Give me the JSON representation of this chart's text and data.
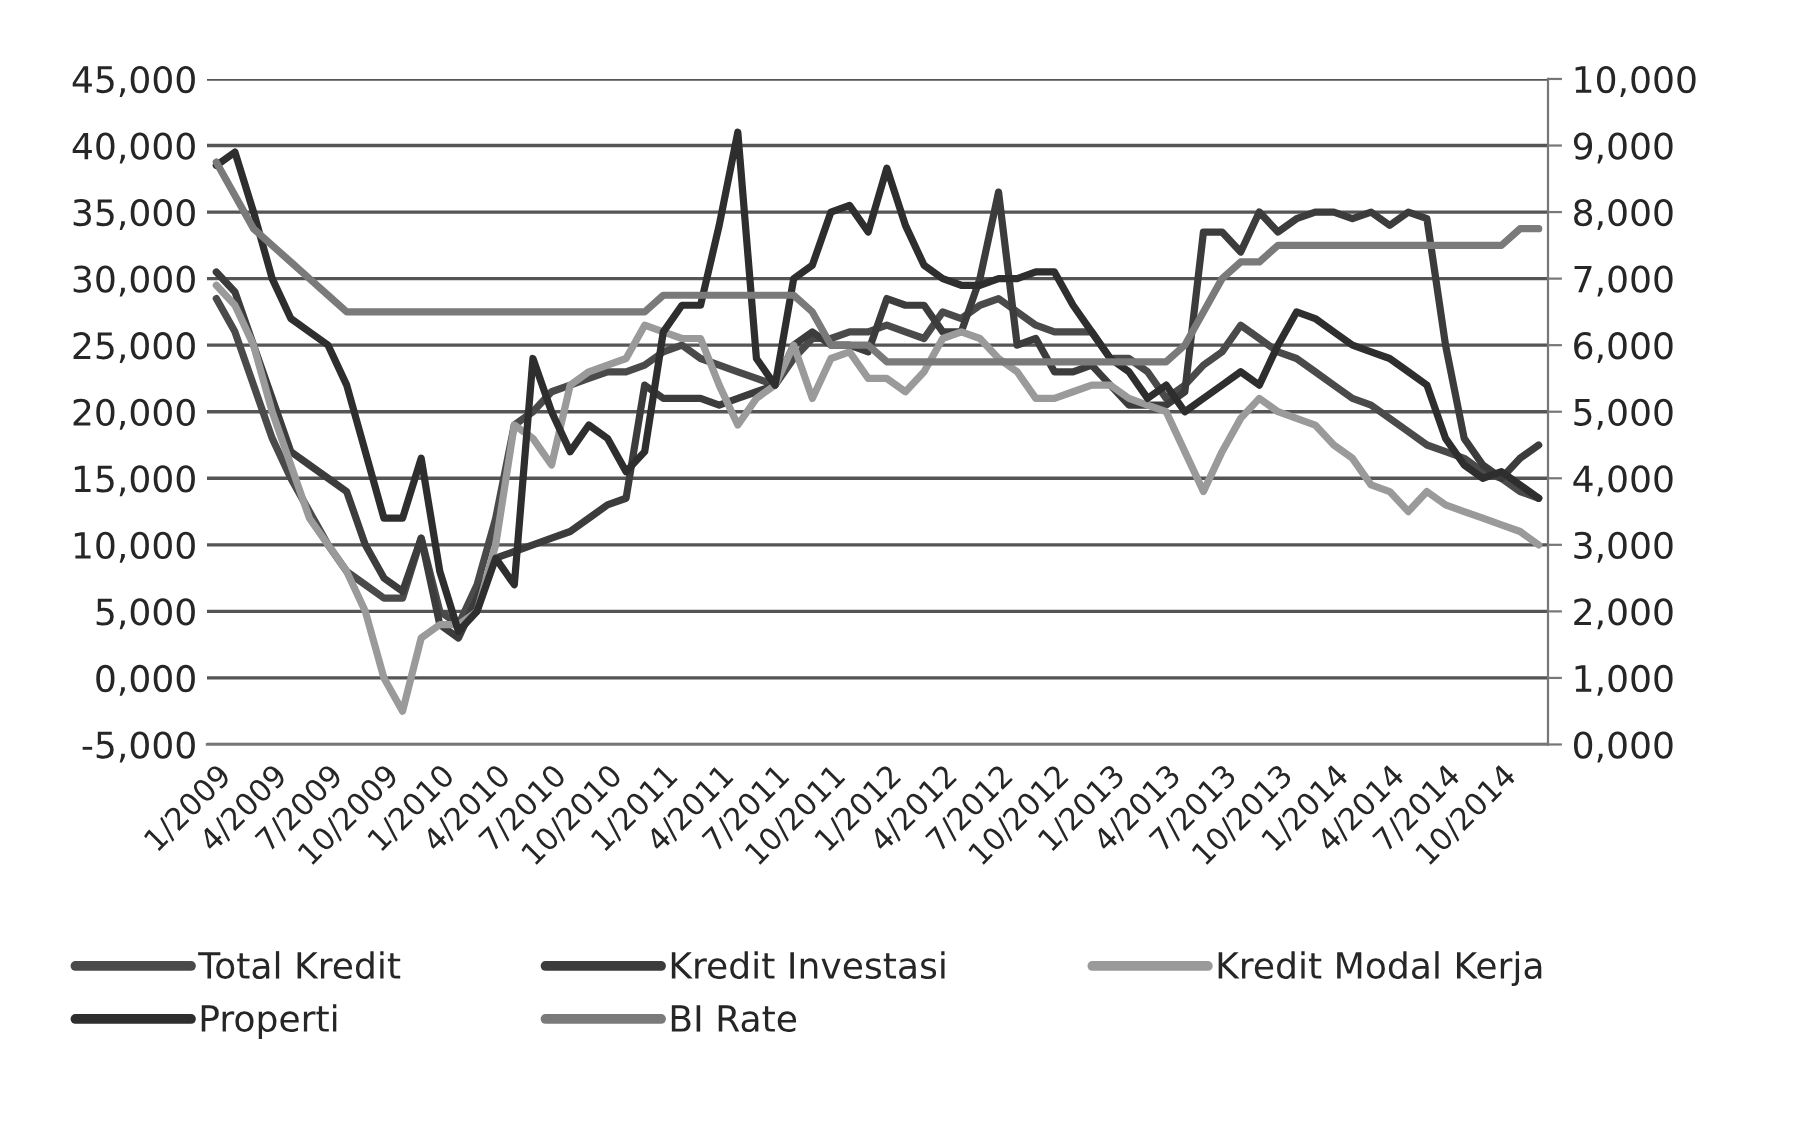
{
  "chart_data": {
    "type": "line",
    "categories": [
      "1/2009",
      null,
      null,
      "4/2009",
      null,
      null,
      "7/2009",
      null,
      null,
      "10/2009",
      null,
      null,
      "1/2010",
      null,
      null,
      "4/2010",
      null,
      null,
      "7/2010",
      null,
      null,
      "10/2010",
      null,
      null,
      "1/2011",
      null,
      null,
      "4/2011",
      null,
      null,
      "7/2011",
      null,
      null,
      "10/2011",
      null,
      null,
      "1/2012",
      null,
      null,
      "4/2012",
      null,
      null,
      "7/2012",
      null,
      null,
      "10/2012",
      null,
      null,
      "1/2013",
      null,
      null,
      "4/2013",
      null,
      null,
      "7/2013",
      null,
      null,
      "10/2013",
      null,
      null,
      "1/2014",
      null,
      null,
      "4/2014",
      null,
      null,
      "7/2014",
      null,
      null,
      "10/2014",
      null,
      null
    ],
    "series": [
      {
        "name": "Total Kredit",
        "color": "#4a4a4a",
        "values": [
          28.5,
          26,
          22,
          18,
          15,
          12.5,
          10,
          8,
          7,
          6,
          6,
          10.5,
          5,
          4,
          7,
          12,
          19,
          20,
          21.5,
          22,
          22.5,
          23,
          23,
          23.5,
          24.5,
          25,
          24,
          23.5,
          23,
          22.5,
          22,
          24,
          25.5,
          25.5,
          26,
          26,
          26.5,
          26,
          25.5,
          27.5,
          27,
          28,
          28.5,
          27.5,
          26.5,
          26,
          26,
          26,
          24,
          24,
          23,
          21,
          22,
          23.5,
          24.5,
          26.5,
          25.5,
          24.5,
          24,
          23,
          22,
          21,
          20.5,
          19.5,
          18.5,
          17.5,
          17,
          16.5,
          15.5,
          15,
          14,
          13.5
        ]
      },
      {
        "name": "Kredit Investasi",
        "color": "#3c3c3c",
        "values": [
          30.5,
          29,
          25,
          21,
          17,
          16,
          15,
          14,
          10,
          7.5,
          6.5,
          10.5,
          4,
          3,
          6,
          9,
          9.5,
          10,
          10.5,
          11,
          12,
          13,
          13.5,
          22,
          21,
          21,
          21,
          20.5,
          21,
          21.5,
          22,
          25,
          26,
          25,
          25,
          24.5,
          28.5,
          28,
          28,
          26,
          26,
          30,
          36.5,
          25,
          25.5,
          23,
          23,
          23.5,
          22,
          20.5,
          20.5,
          20.5,
          21.5,
          33.5,
          33.5,
          32,
          35,
          33.5,
          34.5,
          35,
          35,
          34.5,
          35,
          34,
          35,
          34.5,
          25,
          18,
          16,
          15,
          16.5,
          17.5
        ]
      },
      {
        "name": "Kredit Modal Kerja",
        "color": "#9a9a9a",
        "values": [
          29.5,
          28,
          25,
          20,
          16,
          12,
          10,
          8,
          5,
          0,
          -2.5,
          3,
          4,
          4,
          5,
          10,
          19,
          18,
          16,
          22,
          23,
          23.5,
          24,
          26.5,
          26,
          25.5,
          25.5,
          22,
          19,
          21,
          22,
          25,
          21,
          24,
          24.5,
          22.5,
          22.5,
          21.5,
          23,
          25.5,
          26,
          25.5,
          24,
          23,
          21,
          21,
          21.5,
          22,
          22,
          21,
          20.5,
          20,
          17,
          14,
          17,
          19.5,
          21,
          20,
          19.5,
          19,
          17.5,
          16.5,
          14.5,
          14,
          12.5,
          14,
          13,
          12.5,
          12,
          11.5,
          11,
          10
        ]
      },
      {
        "name": "Properti",
        "color": "#2e2e2e",
        "values": [
          38.5,
          39.5,
          35,
          30,
          27,
          26,
          25,
          22,
          17,
          12,
          12,
          16.5,
          8,
          3.5,
          5,
          9,
          7,
          24,
          20,
          17,
          19,
          18,
          15.5,
          17,
          26,
          28,
          28,
          34,
          41,
          24,
          22,
          30,
          31,
          35,
          35.5,
          33.5,
          38.3,
          34,
          31,
          30,
          29.5,
          29.5,
          30,
          30,
          30.5,
          30.5,
          28,
          26,
          24,
          23,
          21,
          22,
          20,
          21,
          22,
          23,
          22,
          25,
          27.5,
          27,
          26,
          25,
          24.5,
          24,
          23,
          22,
          18,
          16,
          15,
          15.5,
          14.5,
          13.5
        ]
      },
      {
        "name": "BI Rate",
        "color": "#7a7a7a",
        "axis": "y2",
        "values": [
          8.75,
          8.25,
          7.75,
          7.5,
          7.25,
          7,
          6.75,
          6.5,
          6.5,
          6.5,
          6.5,
          6.5,
          6.5,
          6.5,
          6.5,
          6.5,
          6.5,
          6.5,
          6.5,
          6.5,
          6.5,
          6.5,
          6.5,
          6.5,
          6.75,
          6.75,
          6.75,
          6.75,
          6.75,
          6.75,
          6.75,
          6.75,
          6.5,
          6,
          6,
          6,
          5.75,
          5.75,
          5.75,
          5.75,
          5.75,
          5.75,
          5.75,
          5.75,
          5.75,
          5.75,
          5.75,
          5.75,
          5.75,
          5.75,
          5.75,
          5.75,
          6,
          6.5,
          7,
          7.25,
          7.25,
          7.5,
          7.5,
          7.5,
          7.5,
          7.5,
          7.5,
          7.5,
          7.5,
          7.5,
          7.5,
          7.5,
          7.5,
          7.5,
          7.75,
          7.75
        ]
      }
    ],
    "ylim": [
      -5,
      45
    ],
    "yticks": [
      {
        "value": -5,
        "label": "-5,000"
      },
      {
        "value": 0,
        "label": "0,000"
      },
      {
        "value": 5,
        "label": "5,000"
      },
      {
        "value": 10,
        "label": "10,000"
      },
      {
        "value": 15,
        "label": "15,000"
      },
      {
        "value": 20,
        "label": "20,000"
      },
      {
        "value": 25,
        "label": "25,000"
      },
      {
        "value": 30,
        "label": "30,000"
      },
      {
        "value": 35,
        "label": "35,000"
      },
      {
        "value": 40,
        "label": "40,000"
      },
      {
        "value": 45,
        "label": "45,000"
      }
    ],
    "y2lim": [
      0,
      10
    ],
    "y2ticks": [
      {
        "value": 0,
        "label": "0,000"
      },
      {
        "value": 1,
        "label": "1,000"
      },
      {
        "value": 2,
        "label": "2,000"
      },
      {
        "value": 3,
        "label": "3,000"
      },
      {
        "value": 4,
        "label": "4,000"
      },
      {
        "value": 5,
        "label": "5,000"
      },
      {
        "value": 6,
        "label": "6,000"
      },
      {
        "value": 7,
        "label": "7,000"
      },
      {
        "value": 8,
        "label": "8,000"
      },
      {
        "value": 9,
        "label": "9,000"
      },
      {
        "value": 10,
        "label": "10,000"
      }
    ],
    "grid": "y",
    "legend": "bottom",
    "line_style": "solid"
  }
}
